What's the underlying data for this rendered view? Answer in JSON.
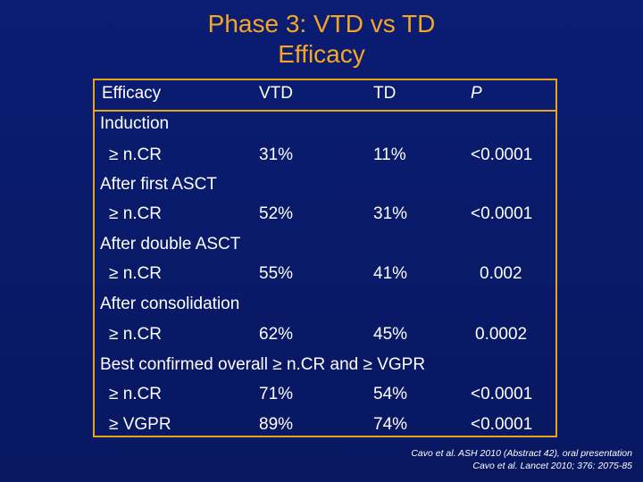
{
  "slide": {
    "title_line1": "Phase 3: VTD vs TD",
    "title_line2": "Efficacy"
  },
  "table": {
    "headers": {
      "label": "Efficacy",
      "vtd": "VTD",
      "td": "TD",
      "p": "P"
    },
    "sections": [
      {
        "title": "Induction",
        "rows": [
          {
            "label": "≥ n.CR",
            "vtd": "31%",
            "td": "11%",
            "p": "<0.0001"
          }
        ]
      },
      {
        "title": "After first ASCT",
        "rows": [
          {
            "label": "≥ n.CR",
            "vtd": "52%",
            "td": "31%",
            "p": "<0.0001"
          }
        ]
      },
      {
        "title": "After double ASCT",
        "rows": [
          {
            "label": "≥ n.CR",
            "vtd": "55%",
            "td": "41%",
            "p": "0.002"
          }
        ]
      },
      {
        "title": "After consolidation",
        "rows": [
          {
            "label": "≥ n.CR",
            "vtd": "62%",
            "td": "45%",
            "p": "0.0002"
          }
        ]
      },
      {
        "title": "Best confirmed overall ≥ n.CR and ≥ VGPR",
        "rows": [
          {
            "label": "≥ n.CR",
            "vtd": "71%",
            "td": "54%",
            "p": "<0.0001"
          },
          {
            "label": "≥ VGPR",
            "vtd": "89%",
            "td": "74%",
            "p": "<0.0001"
          }
        ]
      }
    ]
  },
  "citation": {
    "line1": "Cavo et al. ASH 2010 (Abstract 42), oral presentation",
    "line2": "Cavo et al. Lancet 2010; 376: 2075-85"
  },
  "colors": {
    "background": "#0a1b6b",
    "title": "#f5a623",
    "border": "#e8a21c",
    "text": "#ffffff"
  }
}
